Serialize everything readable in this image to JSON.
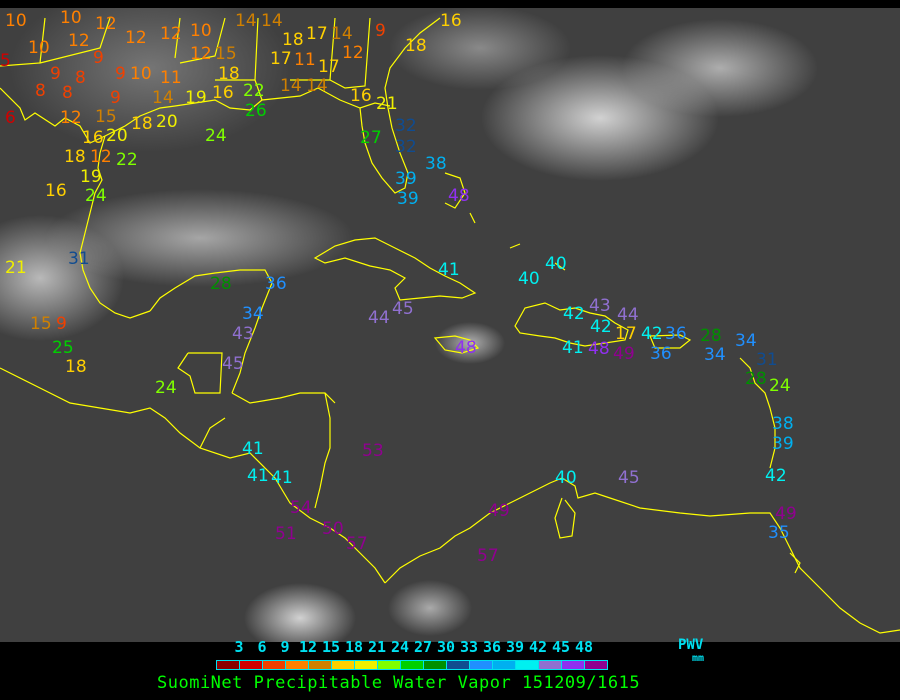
{
  "title": "SuomiNet Precipitable Water Vapor 151209/1615",
  "legend": {
    "unit_label": "PWV",
    "unit": "mm",
    "labels": [
      "3",
      "6",
      "9",
      "12",
      "15",
      "18",
      "21",
      "24",
      "27",
      "30",
      "33",
      "36",
      "39",
      "42",
      "45",
      "48"
    ],
    "colors": [
      "#8b0000",
      "#d00000",
      "#f04000",
      "#ff8000",
      "#d08000",
      "#ffd000",
      "#f0f000",
      "#80ff00",
      "#00d000",
      "#009000",
      "#104c90",
      "#2090ff",
      "#00b0f0",
      "#00f0f0",
      "#9070d0",
      "#9030f0",
      "#900090"
    ]
  },
  "coastline_color": "#ffff00",
  "stations": [
    "10",
    "10",
    "12",
    "12",
    "12",
    "10",
    "14",
    "14",
    "18",
    "17",
    "14",
    "12",
    "9",
    "18",
    "16",
    "5",
    "10",
    "12",
    "9",
    "9",
    "8",
    "9",
    "10",
    "11",
    "12",
    "15",
    "18",
    "17",
    "11",
    "17",
    "8",
    "8",
    "9",
    "14",
    "19",
    "16",
    "22",
    "26",
    "14",
    "14",
    "16",
    "21",
    "6",
    "12",
    "15",
    "16",
    "20",
    "18",
    "20",
    "12",
    "22",
    "18",
    "19",
    "24",
    "16",
    "24",
    "27",
    "32",
    "32",
    "39",
    "39",
    "38",
    "48",
    "21",
    "31",
    "15",
    "9",
    "25",
    "18",
    "28",
    "36",
    "34",
    "43",
    "45",
    "24",
    "41",
    "41",
    "41",
    "54",
    "51",
    "50",
    "57",
    "53",
    "44",
    "45",
    "41",
    "40",
    "40",
    "48",
    "42",
    "43",
    "42",
    "41",
    "48",
    "17",
    "49",
    "44",
    "42",
    "36",
    "36",
    "28",
    "34",
    "34",
    "31",
    "28",
    "24",
    "38",
    "39",
    "42",
    "40",
    "45",
    "49",
    "57",
    "49",
    "35"
  ]
}
